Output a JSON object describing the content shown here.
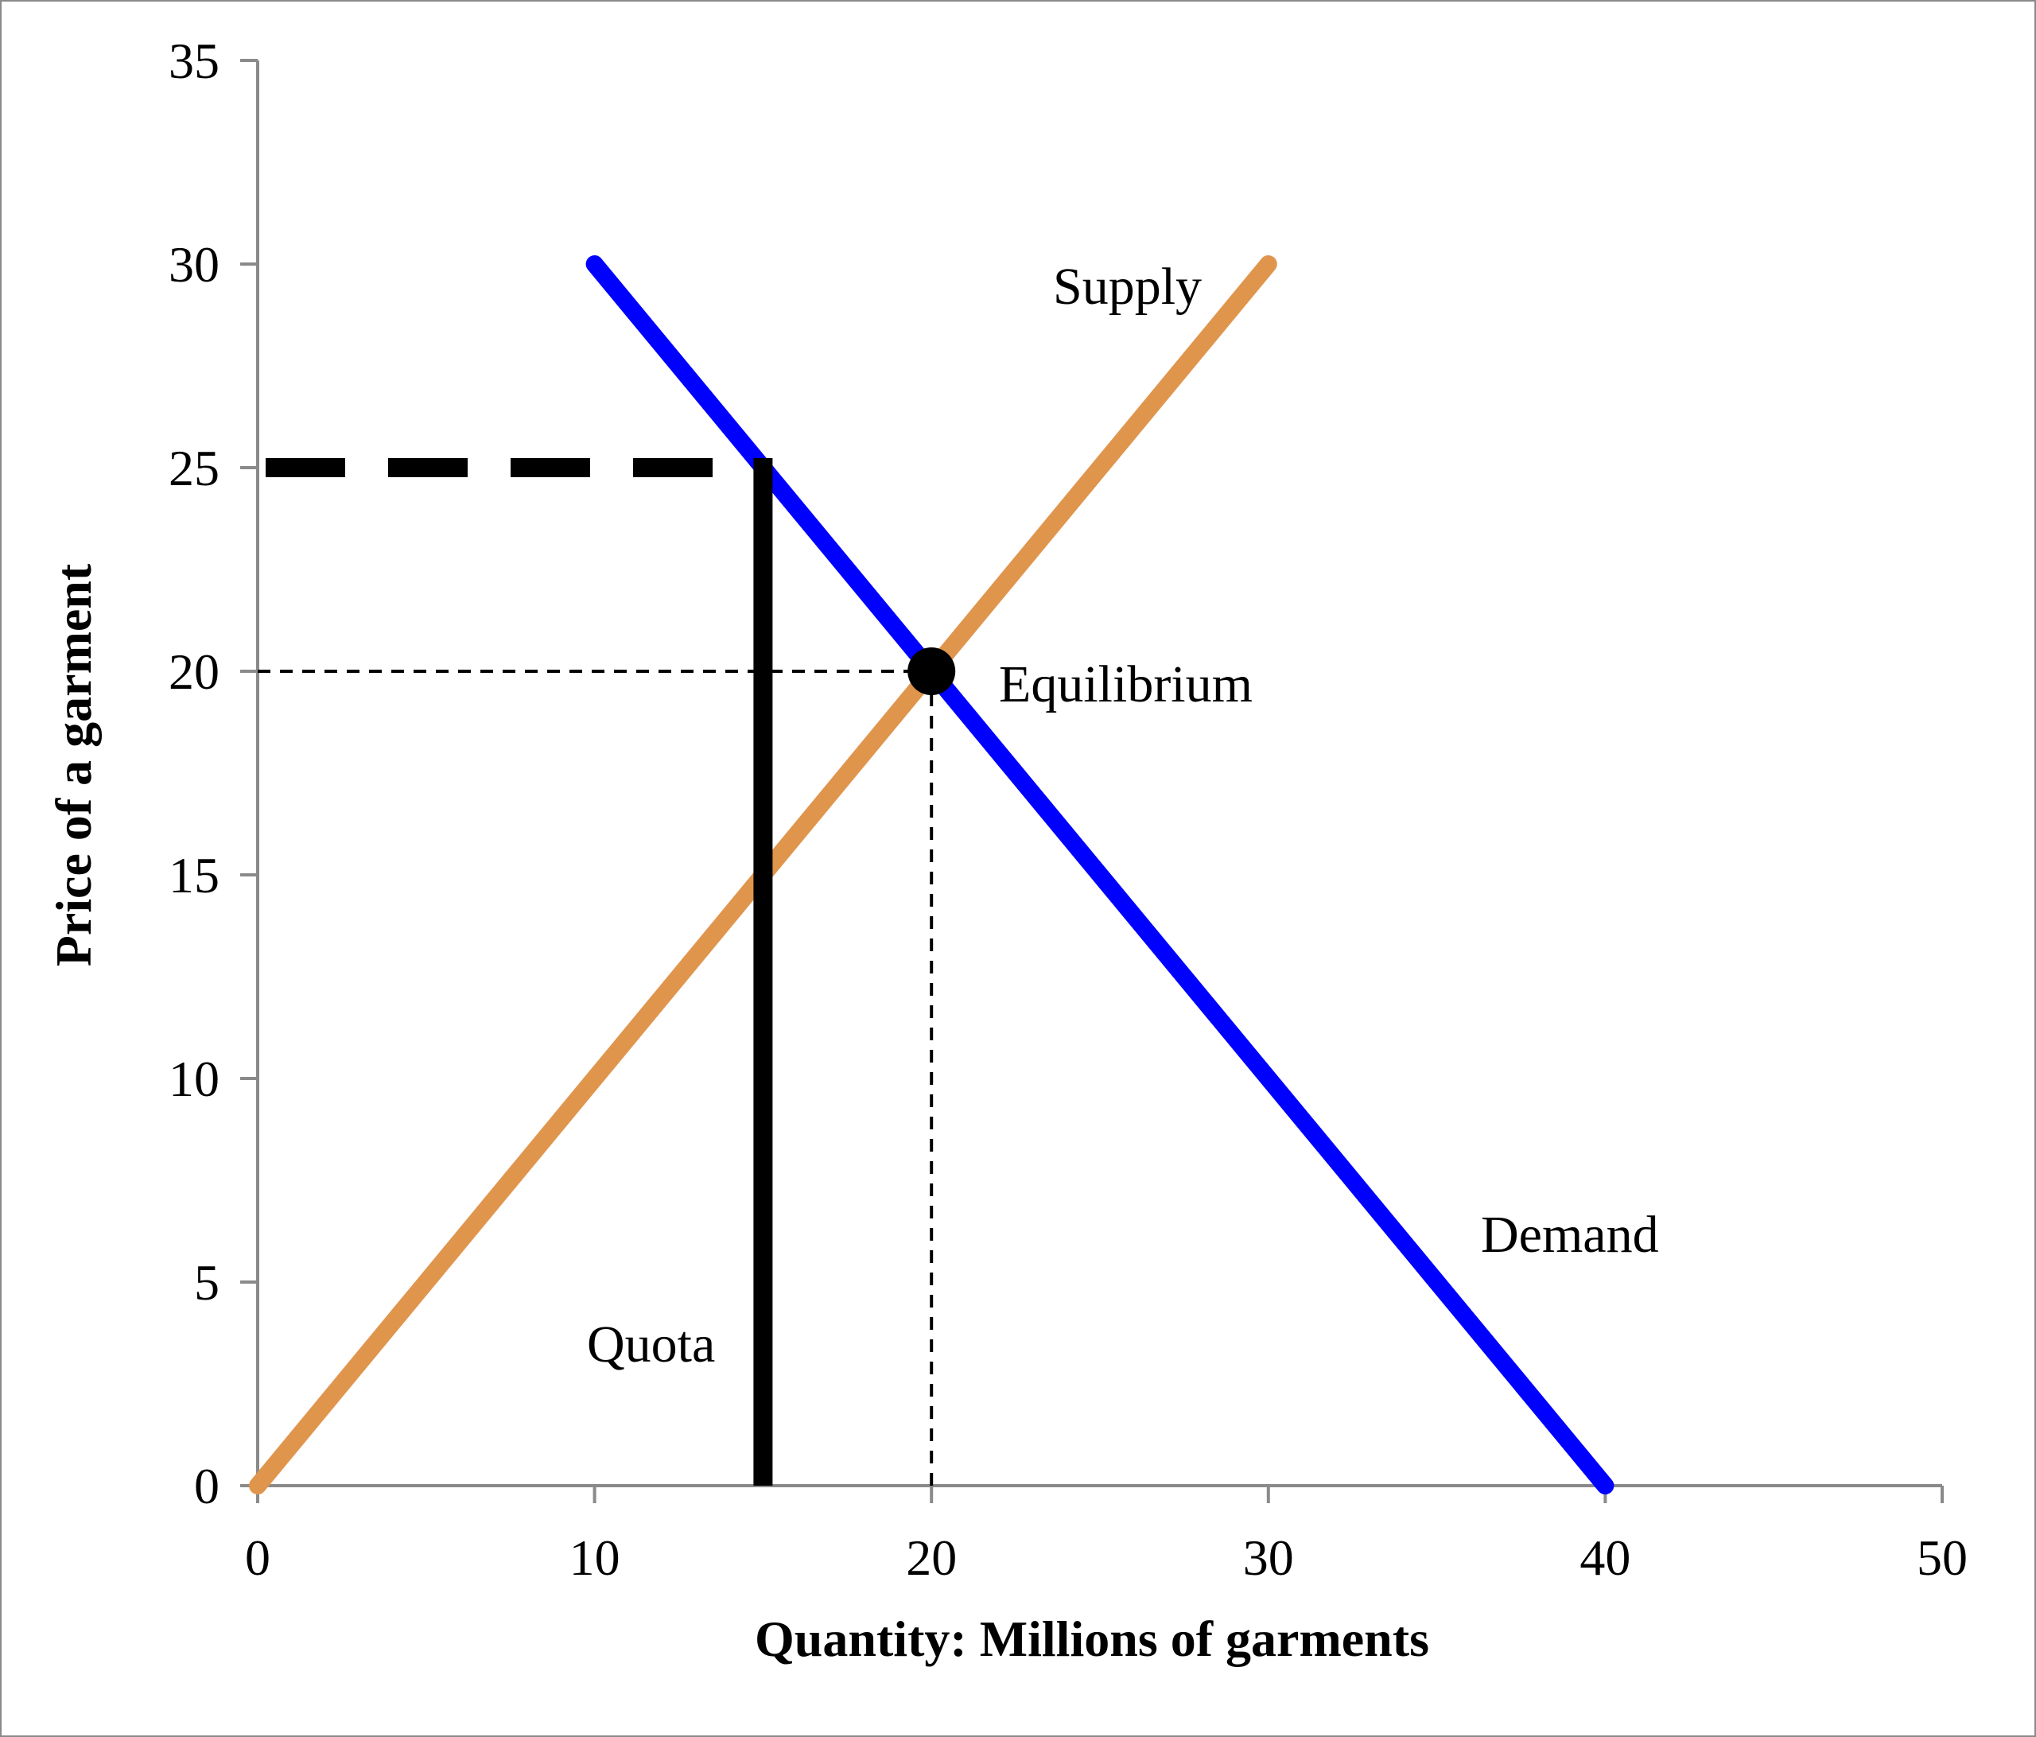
{
  "chart_data": {
    "type": "line",
    "xlabel": "Quantity: Millions of garments",
    "ylabel": "Price of a garment",
    "xlim": [
      0,
      50
    ],
    "ylim": [
      0,
      35
    ],
    "x_ticks": [
      0,
      10,
      20,
      30,
      40,
      50
    ],
    "y_ticks": [
      0,
      5,
      10,
      15,
      20,
      25,
      30,
      35
    ],
    "grid": false,
    "series": [
      {
        "name": "Supply",
        "color": "#e0954d",
        "points": [
          [
            0,
            0
          ],
          [
            30,
            30
          ]
        ]
      },
      {
        "name": "Demand",
        "color": "#0000ff",
        "points": [
          [
            10,
            30
          ],
          [
            40,
            0
          ]
        ]
      }
    ],
    "quota": {
      "label": "Quota",
      "x": 15,
      "price": 25
    },
    "equilibrium": {
      "label": "Equilibrium",
      "x": 20,
      "y": 20
    }
  }
}
